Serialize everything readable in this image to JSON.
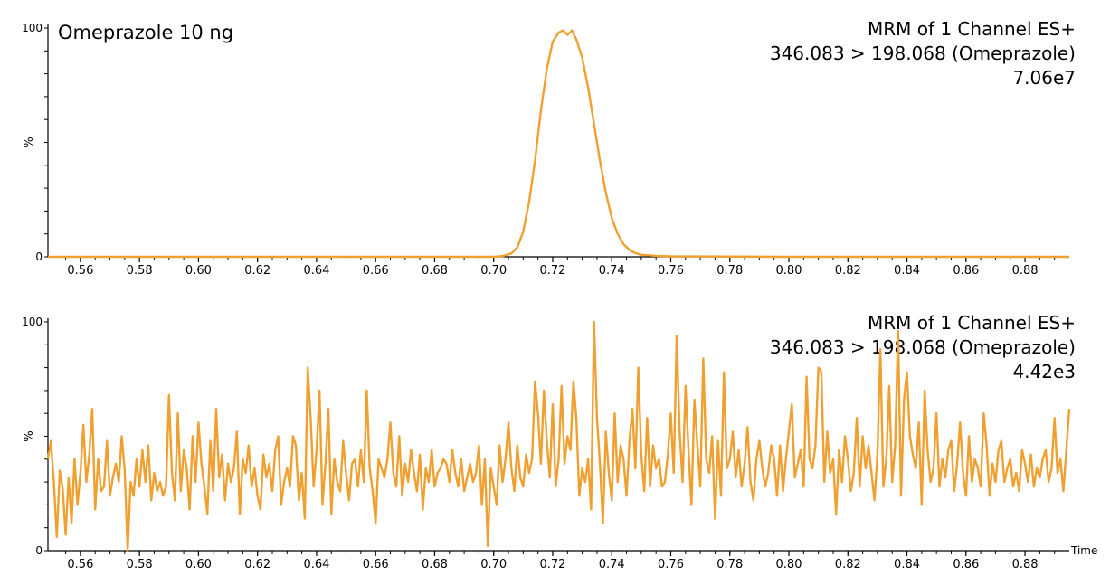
{
  "chart_data": [
    {
      "type": "line",
      "title": "Omeprazole 10 ng",
      "annotation": [
        "MRM of 1 Channel ES+",
        "346.083 > 198.068 (Omeprazole)",
        "7.06e7"
      ],
      "xlabel": "",
      "ylabel": "%",
      "xlim": [
        0.549,
        0.895
      ],
      "ylim": [
        0,
        100
      ],
      "x_ticks": [
        "0.56",
        "0.58",
        "0.60",
        "0.62",
        "0.64",
        "0.66",
        "0.68",
        "0.70",
        "0.72",
        "0.74",
        "0.76",
        "0.78",
        "0.80",
        "0.82",
        "0.84",
        "0.86",
        "0.88"
      ],
      "y_ticks": [
        "0",
        "100"
      ],
      "series": [
        {
          "color": "#f0a030",
          "x": [
            0.549,
            0.6,
            0.65,
            0.695,
            0.7,
            0.703,
            0.706,
            0.708,
            0.71,
            0.712,
            0.714,
            0.716,
            0.718,
            0.72,
            0.722,
            0.7235,
            0.725,
            0.7265,
            0.728,
            0.73,
            0.732,
            0.734,
            0.736,
            0.738,
            0.74,
            0.742,
            0.744,
            0.746,
            0.748,
            0.75,
            0.755,
            0.76,
            0.78,
            0.8,
            0.85,
            0.895
          ],
          "y": [
            0,
            0,
            0,
            0,
            0,
            0.3,
            1.5,
            4,
            11,
            24,
            42,
            64,
            82,
            94,
            98,
            99,
            97,
            99,
            95,
            87,
            74,
            58,
            42,
            28,
            17,
            10,
            5.5,
            3,
            1.6,
            0.9,
            0.4,
            0.2,
            0.1,
            0,
            0,
            0
          ]
        }
      ]
    },
    {
      "type": "line",
      "title": "",
      "annotation": [
        "MRM of 1 Channel ES+",
        "346.083 > 198.068 (Omeprazole)",
        "4.42e3"
      ],
      "xlabel": "Time",
      "ylabel": "%",
      "xlim": [
        0.549,
        0.895
      ],
      "ylim": [
        0,
        100
      ],
      "x_ticks": [
        "0.56",
        "0.58",
        "0.60",
        "0.62",
        "0.64",
        "0.66",
        "0.68",
        "0.70",
        "0.72",
        "0.74",
        "0.76",
        "0.78",
        "0.80",
        "0.82",
        "0.84",
        "0.86",
        "0.88"
      ],
      "y_ticks": [
        "0",
        "100"
      ],
      "series": [
        {
          "color": "#f0a030",
          "x_start": 0.549,
          "x_step": 0.001,
          "y": [
            40,
            48,
            30,
            6,
            35,
            27,
            7,
            32,
            12,
            40,
            20,
            34,
            55,
            30,
            42,
            62,
            18,
            40,
            26,
            28,
            48,
            24,
            32,
            38,
            30,
            50,
            35,
            0,
            30,
            24,
            40,
            28,
            44,
            30,
            46,
            22,
            34,
            26,
            30,
            24,
            28,
            68,
            34,
            22,
            60,
            26,
            44,
            36,
            18,
            50,
            30,
            56,
            38,
            28,
            16,
            48,
            26,
            62,
            32,
            42,
            22,
            38,
            30,
            36,
            52,
            16,
            40,
            34,
            46,
            28,
            36,
            24,
            18,
            42,
            32,
            38,
            26,
            44,
            50,
            20,
            30,
            36,
            28,
            50,
            46,
            22,
            34,
            14,
            80,
            58,
            28,
            44,
            70,
            20,
            38,
            62,
            16,
            40,
            30,
            26,
            48,
            34,
            22,
            38,
            40,
            28,
            44,
            30,
            70,
            36,
            26,
            12,
            40,
            36,
            32,
            40,
            56,
            34,
            28,
            50,
            24,
            38,
            30,
            44,
            34,
            26,
            42,
            18,
            36,
            30,
            44,
            28,
            34,
            36,
            40,
            38,
            30,
            44,
            34,
            28,
            40,
            26,
            32,
            38,
            30,
            34,
            46,
            20,
            40,
            2,
            36,
            28,
            20,
            46,
            30,
            40,
            56,
            36,
            26,
            46,
            32,
            28,
            42,
            34,
            40,
            74,
            60,
            38,
            70,
            48,
            32,
            64,
            28,
            40,
            72,
            38,
            50,
            44,
            74,
            58,
            24,
            36,
            30,
            40,
            18,
            100,
            58,
            38,
            12,
            52,
            34,
            22,
            60,
            30,
            46,
            40,
            24,
            48,
            62,
            36,
            80,
            42,
            26,
            58,
            28,
            46,
            36,
            40,
            28,
            30,
            42,
            60,
            34,
            94,
            52,
            30,
            72,
            44,
            20,
            66,
            46,
            28,
            84,
            40,
            34,
            50,
            14,
            48,
            24,
            78,
            36,
            40,
            52,
            32,
            44,
            28,
            38,
            54,
            30,
            22,
            40,
            48,
            36,
            28,
            34,
            46,
            40,
            24,
            46,
            26,
            40,
            52,
            64,
            32,
            38,
            44,
            28,
            76,
            40,
            36,
            46,
            80,
            78,
            30,
            52,
            34,
            40,
            16,
            44,
            30,
            50,
            40,
            26,
            34,
            58,
            28,
            50,
            36,
            46,
            34,
            22,
            42,
            88,
            28,
            40,
            72,
            30,
            46,
            96,
            24,
            66,
            78,
            50,
            42,
            36,
            56,
            20,
            70,
            44,
            30,
            36,
            60,
            28,
            40,
            32,
            44,
            48,
            26,
            38,
            56,
            34,
            24,
            50,
            30,
            40,
            36,
            28,
            60,
            46,
            24,
            38,
            30,
            44,
            48,
            30,
            36,
            40,
            28,
            34,
            26,
            44,
            38,
            30,
            42,
            28,
            36,
            32,
            40,
            44,
            30,
            36,
            58,
            34,
            40,
            26,
            44,
            62,
            30,
            38,
            28,
            30,
            46,
            34,
            40,
            30,
            22,
            36,
            42,
            30,
            34,
            48,
            28,
            36,
            60,
            40,
            32,
            36,
            24,
            38,
            46,
            28,
            40,
            32,
            34,
            26,
            70,
            50,
            34,
            40,
            30,
            44,
            26,
            34,
            38,
            30,
            20,
            42,
            40,
            36,
            28,
            30,
            48,
            14,
            40,
            36,
            30,
            34,
            42,
            24,
            38,
            28,
            44,
            50,
            18,
            32,
            40,
            36,
            6,
            22,
            34,
            28,
            42,
            36,
            30,
            26,
            44,
            30,
            18,
            38,
            28,
            40,
            34,
            26,
            44,
            36,
            30,
            28,
            10,
            36,
            42,
            26,
            34,
            30,
            40,
            22,
            38,
            46,
            28,
            36,
            40,
            24,
            18,
            44,
            30,
            36,
            28,
            40,
            42,
            26,
            34,
            38,
            0,
            36,
            30,
            42,
            22,
            44,
            34,
            36,
            48,
            28,
            30,
            40,
            20,
            36,
            44,
            26,
            34,
            18,
            40,
            30,
            38,
            48,
            26,
            32,
            42,
            36,
            24,
            38,
            30,
            46,
            28,
            36,
            40,
            34,
            26,
            8,
            32,
            38,
            24,
            40,
            30,
            36,
            34,
            20,
            12,
            44,
            26,
            36,
            32,
            38,
            28,
            40,
            18,
            36,
            8,
            30,
            34,
            34
          ]
        }
      ]
    }
  ]
}
